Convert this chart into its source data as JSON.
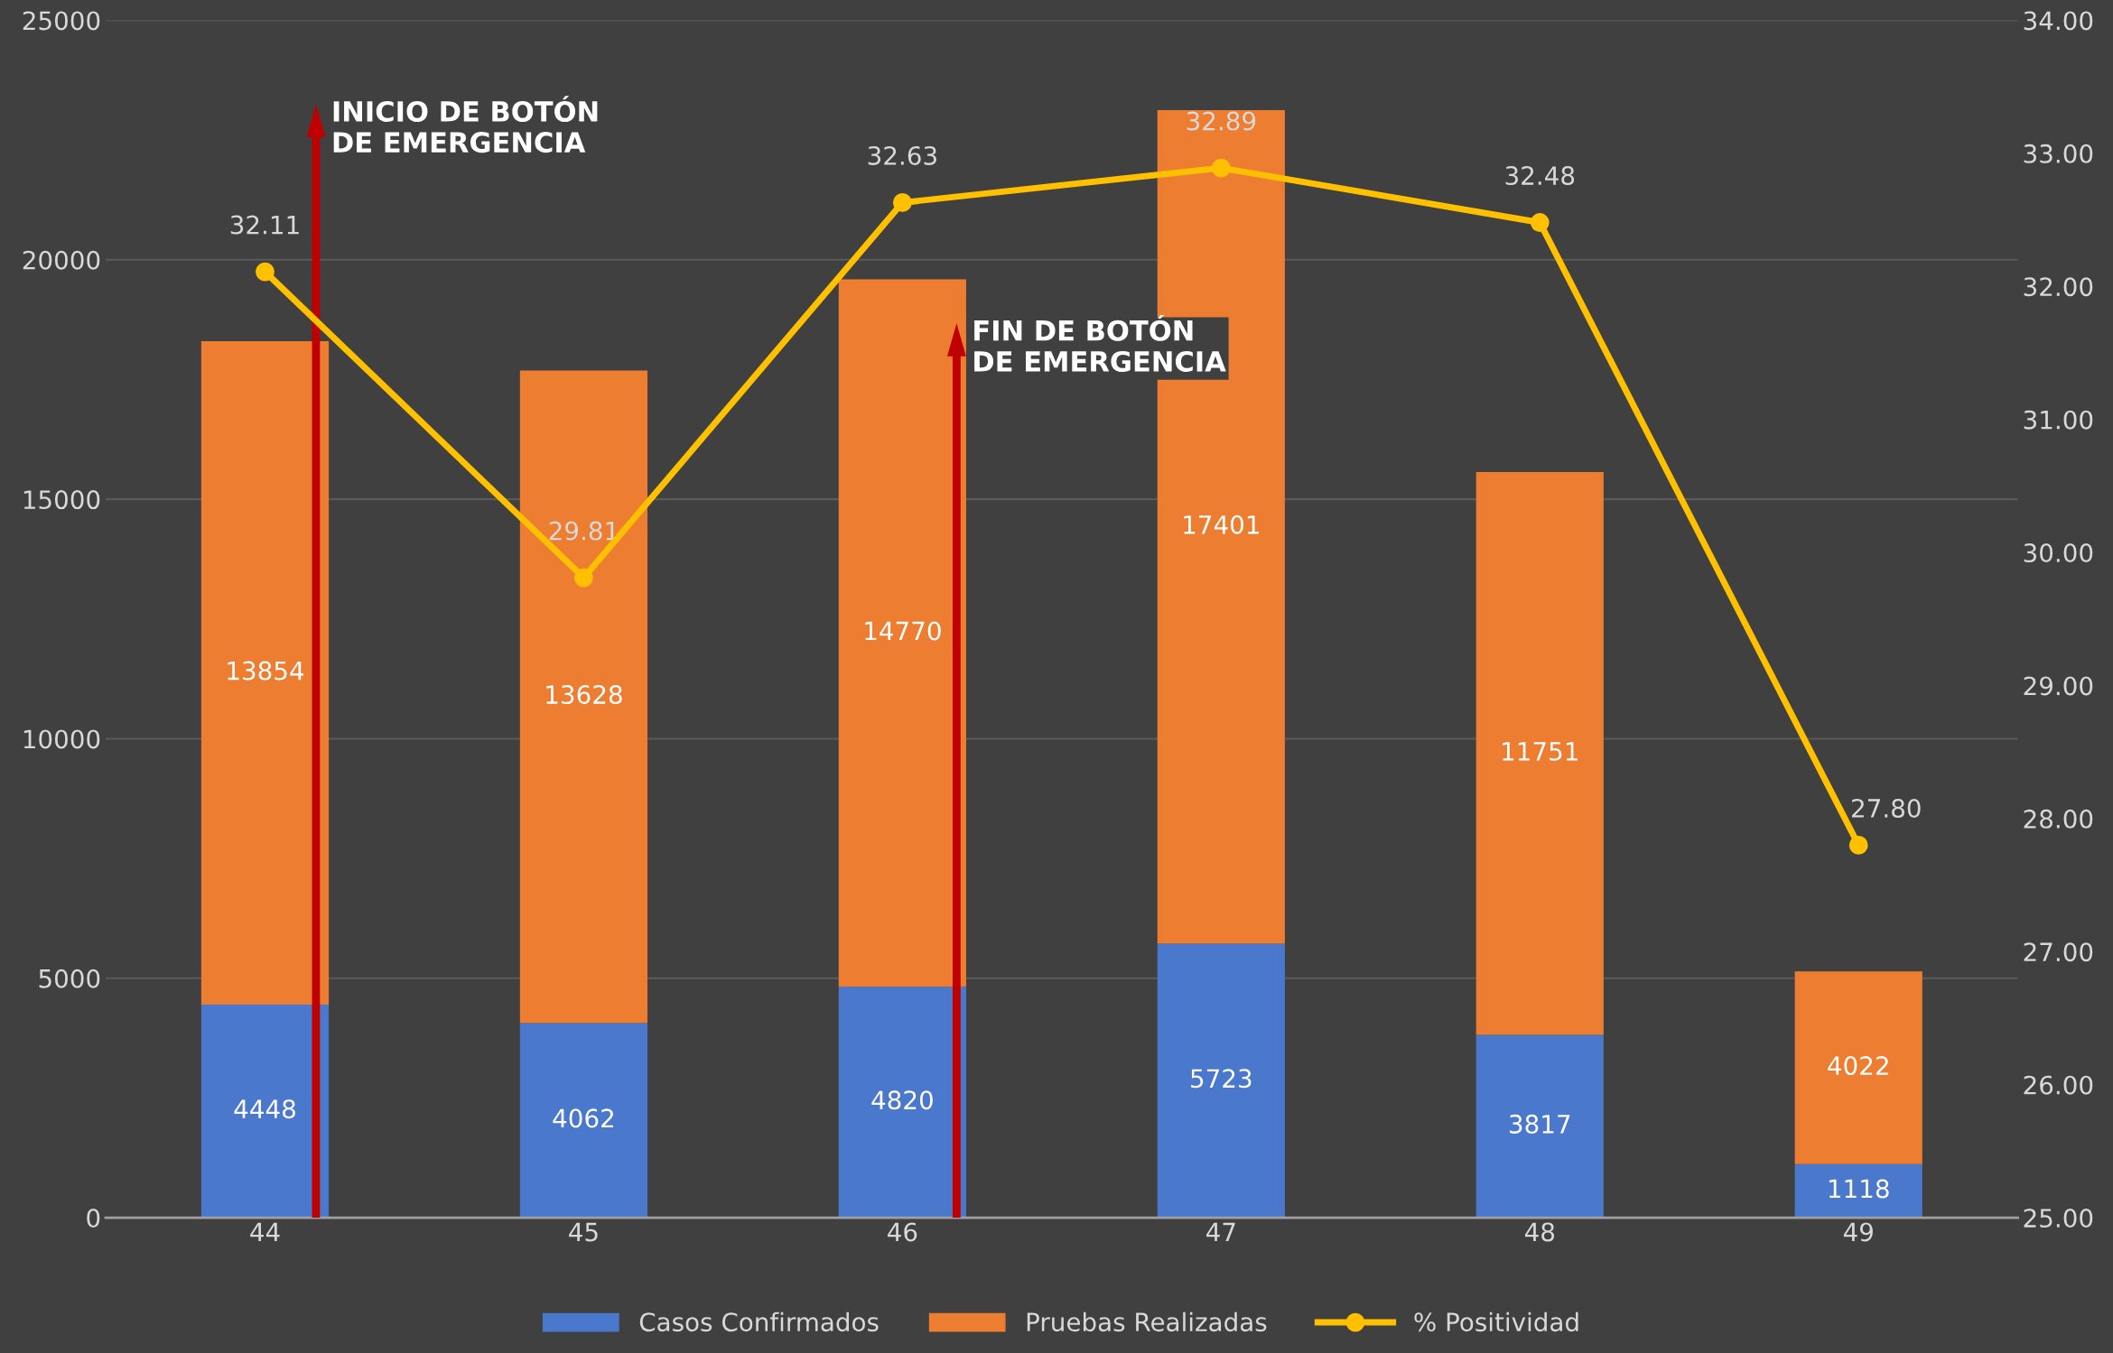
{
  "chart_data": {
    "type": "bar",
    "stacked": true,
    "categories": [
      "44",
      "45",
      "46",
      "47",
      "48",
      "49"
    ],
    "series": [
      {
        "name": "Casos Confirmados",
        "color": "#4a78cc",
        "values": [
          4448,
          4062,
          4820,
          5723,
          3817,
          1118
        ]
      },
      {
        "name": "Pruebas Realizadas",
        "color": "#ed7d31",
        "values": [
          13854,
          13628,
          14770,
          17401,
          11751,
          4022
        ]
      },
      {
        "name": "% Positividad",
        "type": "line",
        "axis": "y2",
        "color": "#ffc000",
        "marker": "circle",
        "values": [
          32.11,
          29.81,
          32.63,
          32.89,
          32.48,
          27.8
        ],
        "value_labels": [
          "32.11",
          "29.81",
          "32.63",
          "32.89",
          "32.48",
          "27.80"
        ]
      }
    ],
    "ylim": [
      0,
      25000
    ],
    "yticks": [
      0,
      5000,
      10000,
      15000,
      20000,
      25000
    ],
    "y2lim": [
      25,
      34
    ],
    "y2ticks": [
      {
        "value": 25,
        "label": "25.00"
      },
      {
        "value": 26,
        "label": "26.00"
      },
      {
        "value": 27,
        "label": "27.00"
      },
      {
        "value": 28,
        "label": "28.00"
      },
      {
        "value": 29,
        "label": "29.00"
      },
      {
        "value": 30,
        "label": "30.00"
      },
      {
        "value": 31,
        "label": "31.00"
      },
      {
        "value": 32,
        "label": "32.00"
      },
      {
        "value": 33,
        "label": "33.00"
      },
      {
        "value": 34,
        "label": "34.00"
      }
    ],
    "data_labels": true,
    "grid": "y",
    "legend": "bottom",
    "annotations": [
      "INICIO DE BOTÓN\nDE EMERGENCIA",
      "FIN DE BOTÓN\nDE EMERGENCIA"
    ]
  }
}
